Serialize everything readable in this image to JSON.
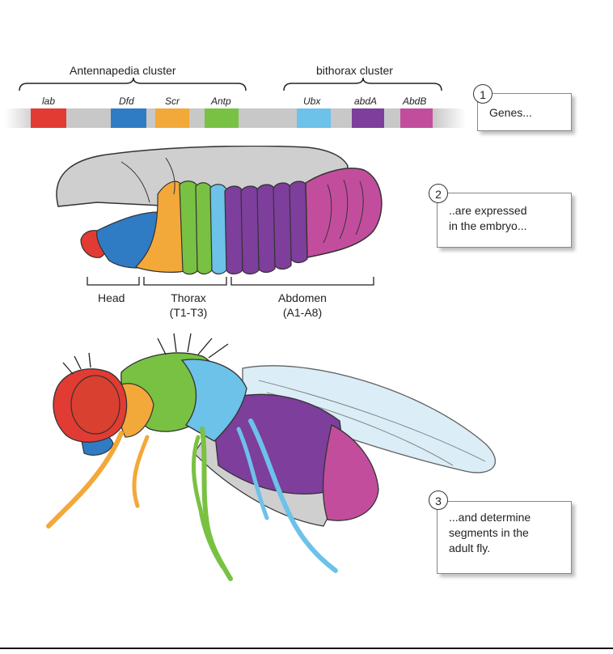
{
  "clusters": {
    "antennapedia": "Antennapedia cluster",
    "bithorax": "bithorax cluster"
  },
  "genes": [
    {
      "name": "lab",
      "color": "#e23b33"
    },
    {
      "name": "Dfd",
      "color": "#2f7cc5"
    },
    {
      "name": "Scr",
      "color": "#f3a83a"
    },
    {
      "name": "Antp",
      "color": "#79c142"
    },
    {
      "name": "Ubx",
      "color": "#6cc2e8"
    },
    {
      "name": "abdA",
      "color": "#7d3e9c"
    },
    {
      "name": "AbdB",
      "color": "#c34d9d"
    }
  ],
  "regions": {
    "head": "Head",
    "thorax": "Thorax",
    "thorax_sub": "(T1-T3)",
    "abdomen": "Abdomen",
    "abdomen_sub": "(A1-A8)"
  },
  "callouts": [
    {
      "number": "1",
      "text": "Genes..."
    },
    {
      "number": "2",
      "text_line1": "..are expressed",
      "text_line2": "in the embryo..."
    },
    {
      "number": "3",
      "text_line1": "...and determine",
      "text_line2": "segments in the",
      "text_line3": "adult fly."
    }
  ],
  "colors": {
    "chromosome": "#c8c8c8",
    "body_gray": "#cfcfcf",
    "wing": "#d9ecf6",
    "eye": "#d9402f"
  }
}
